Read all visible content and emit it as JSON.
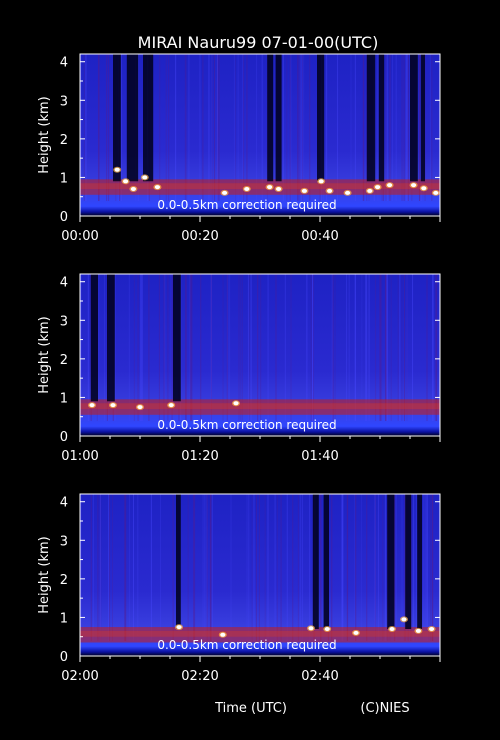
{
  "chart_data": {
    "type": "heatmap",
    "title": "MIRAI Nauru99 07-01-00(UTC)",
    "xlabel": "Time (UTC)",
    "credit": "(C)NIES",
    "ylabel": "Height (km)",
    "ylim": [
      0,
      4.2
    ],
    "yticks": [
      "0",
      "1",
      "2",
      "3",
      "4"
    ],
    "annotation": "0.0-0.5km correction required",
    "colors": {
      "background": "#2020c8",
      "low_signal": "#00001a",
      "aerosol": "#c81e14",
      "cloud": "#ffffff",
      "axes": "#ffffff"
    },
    "panels": [
      {
        "name": "hour-00",
        "xlim_minutes": [
          0,
          60
        ],
        "xticks": [
          "00:00",
          "00:20",
          "00:40"
        ],
        "cloud_base_km": 0.8,
        "shadow_columns_minutes": [
          [
            5.5,
            6.8
          ],
          [
            7.8,
            9.7
          ],
          [
            10.5,
            12.2
          ],
          [
            31.2,
            32.2
          ],
          [
            32.6,
            33.6
          ],
          [
            39.5,
            40.7
          ],
          [
            47.8,
            49.2
          ],
          [
            49.8,
            50.7
          ],
          [
            55.0,
            56.3
          ],
          [
            56.8,
            57.5
          ]
        ],
        "cloud_spots": [
          [
            6.2,
            1.2
          ],
          [
            7.6,
            0.9
          ],
          [
            8.9,
            0.7
          ],
          [
            10.8,
            1.0
          ],
          [
            12.9,
            0.75
          ],
          [
            24.1,
            0.6
          ],
          [
            27.8,
            0.7
          ],
          [
            31.6,
            0.75
          ],
          [
            33.1,
            0.7
          ],
          [
            37.4,
            0.65
          ],
          [
            40.2,
            0.9
          ],
          [
            41.6,
            0.65
          ],
          [
            44.6,
            0.6
          ],
          [
            48.3,
            0.65
          ],
          [
            49.6,
            0.75
          ],
          [
            51.6,
            0.8
          ],
          [
            55.6,
            0.8
          ],
          [
            57.3,
            0.72
          ],
          [
            59.3,
            0.6
          ]
        ]
      },
      {
        "name": "hour-01",
        "xlim_minutes": [
          0,
          60
        ],
        "xticks": [
          "01:00",
          "01:20",
          "01:40"
        ],
        "cloud_base_km": 0.8,
        "shadow_columns_minutes": [
          [
            1.8,
            3.0
          ],
          [
            4.5,
            5.8
          ],
          [
            15.5,
            16.8
          ]
        ],
        "cloud_spots": [
          [
            2.0,
            0.8
          ],
          [
            5.5,
            0.8
          ],
          [
            10.0,
            0.75
          ],
          [
            15.2,
            0.8
          ],
          [
            26.0,
            0.85
          ]
        ]
      },
      {
        "name": "hour-02",
        "xlim_minutes": [
          0,
          60
        ],
        "xticks": [
          "02:00",
          "02:20",
          "02:40"
        ],
        "cloud_base_km": 0.6,
        "shadow_columns_minutes": [
          [
            16.0,
            16.8
          ],
          [
            38.8,
            39.8
          ],
          [
            40.6,
            41.5
          ],
          [
            51.2,
            52.4
          ],
          [
            54.2,
            55.2
          ],
          [
            56.2,
            57.0
          ]
        ],
        "cloud_spots": [
          [
            16.5,
            0.75
          ],
          [
            23.8,
            0.55
          ],
          [
            38.5,
            0.72
          ],
          [
            41.2,
            0.7
          ],
          [
            46.0,
            0.6
          ],
          [
            52.0,
            0.7
          ],
          [
            54.0,
            0.95
          ],
          [
            56.4,
            0.65
          ],
          [
            58.6,
            0.7
          ]
        ]
      }
    ]
  }
}
